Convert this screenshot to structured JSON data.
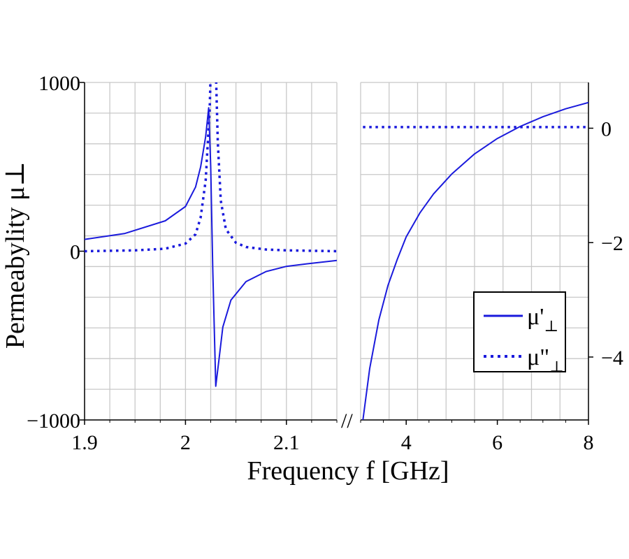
{
  "chart_data": {
    "type": "line",
    "xlabel": "Frequency f [GHz]",
    "ylabel": "Permeabylity μ⊥",
    "grid": true,
    "legend_placement": "bottom-right",
    "series_style": {
      "mu_real": {
        "color": "#1a1adc",
        "style": "solid"
      },
      "mu_imag": {
        "color": "#1a1adc",
        "style": "dotted"
      }
    },
    "legend": [
      {
        "base": "μ'",
        "sub": "⊥",
        "style": "solid"
      },
      {
        "base": "μ\"",
        "sub": "⊥",
        "style": "dotted"
      }
    ],
    "break_marker": "//",
    "panels": [
      {
        "name": "left",
        "xlim": [
          1.9,
          2.15
        ],
        "ylim": [
          -1000,
          1000
        ],
        "x_ticks": [
          1.9,
          2,
          2.1
        ],
        "x_tick_labels": [
          "1.9",
          "2",
          "2.1"
        ],
        "y_ticks": [
          -1000,
          0,
          1000
        ],
        "y_tick_labels": [
          "−1000",
          "0",
          "1000"
        ],
        "y_axis_side": "left",
        "series": [
          {
            "key": "mu_real",
            "x": [
              1.9,
              1.94,
              1.98,
              2.0,
              2.01,
              2.015,
              2.02,
              2.023,
              2.025,
              2.027,
              2.03,
              2.033,
              2.037,
              2.045,
              2.06,
              2.08,
              2.1,
              2.12,
              2.15
            ],
            "y": [
              70,
              105,
              180,
              265,
              380,
              500,
              680,
              850,
              500,
              -100,
              -800,
              -650,
              -450,
              -290,
              -180,
              -120,
              -90,
              -75,
              -55
            ]
          },
          {
            "key": "mu_imag",
            "x": [
              1.9,
              1.95,
              1.98,
              2.0,
              2.01,
              2.015,
              2.02,
              2.024,
              2.026,
              2.028,
              2.029,
              2.03,
              2.032,
              2.035,
              2.04,
              2.05,
              2.06,
              2.08,
              2.1,
              2.15
            ],
            "y": [
              0,
              5,
              15,
              45,
              100,
              200,
              420,
              850,
              1300,
              1680,
              1600,
              1100,
              650,
              300,
              130,
              50,
              25,
              10,
              5,
              0
            ]
          }
        ]
      },
      {
        "name": "right",
        "xlim": [
          3,
          8
        ],
        "ylim": [
          -5.1,
          0.8
        ],
        "x_ticks": [
          4,
          6,
          8
        ],
        "x_tick_labels": [
          "4",
          "6",
          "8"
        ],
        "y_ticks": [
          -4,
          -2,
          0
        ],
        "y_tick_labels": [
          "−4",
          "−2",
          "0"
        ],
        "y_axis_side": "right",
        "series": [
          {
            "key": "mu_real",
            "x": [
              3.05,
              3.2,
              3.4,
              3.6,
              3.8,
              4.0,
              4.3,
              4.6,
              5.0,
              5.5,
              6.0,
              6.5,
              7.0,
              7.5,
              8.0
            ],
            "y": [
              -5.1,
              -4.2,
              -3.35,
              -2.75,
              -2.3,
              -1.9,
              -1.48,
              -1.15,
              -0.8,
              -0.45,
              -0.18,
              0.03,
              0.2,
              0.34,
              0.45
            ]
          },
          {
            "key": "mu_imag",
            "x": [
              3.05,
              4.0,
              5.0,
              6.0,
              7.0,
              8.0
            ],
            "y": [
              0.02,
              0.02,
              0.02,
              0.02,
              0.02,
              0.02
            ]
          }
        ]
      }
    ]
  }
}
